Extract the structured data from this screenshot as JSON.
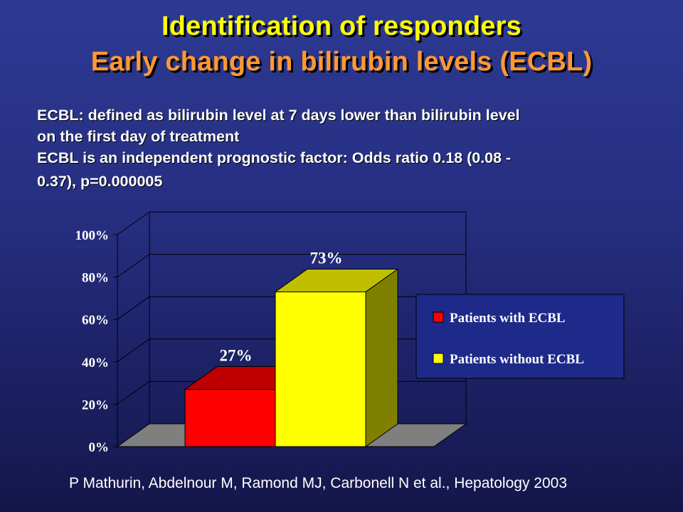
{
  "slide": {
    "title_line1": "Identification of responders",
    "title_line2": "Early change in bilirubin levels (ECBL)",
    "definition_line1": "ECBL: defined as bilirubin level at 7 days lower than bilirubin level",
    "definition_line2": "on the first day of treatment",
    "factor_line1": "ECBL is an independent prognostic factor: Odds ratio 0.18 (0.08 -",
    "factor_line2": "0.37), p=0.000005",
    "citation": "P Mathurin, Abdelnour M, Ramond MJ, Carbonell N et al., Hepatology  2003"
  },
  "chart_data": {
    "type": "bar",
    "style": "3d",
    "title": "",
    "xlabel": "",
    "ylabel": "",
    "ylim": [
      0,
      100
    ],
    "y_ticks": [
      "0%",
      "20%",
      "40%",
      "60%",
      "80%",
      "100%"
    ],
    "y_tick_values": [
      0,
      20,
      40,
      60,
      80,
      100
    ],
    "grid": true,
    "legend_position": "right",
    "series": [
      {
        "name": "Patients with ECBL",
        "value": 27,
        "label": "27%",
        "color": "#ff0000"
      },
      {
        "name": "Patients without ECBL",
        "value": 73,
        "label": "73%",
        "color": "#ffff00"
      }
    ],
    "colors": {
      "background": "#2d3a94",
      "floor": "#7f7f7f",
      "wall_line": "#000000",
      "legend_bg": "#1e2a8a"
    }
  }
}
